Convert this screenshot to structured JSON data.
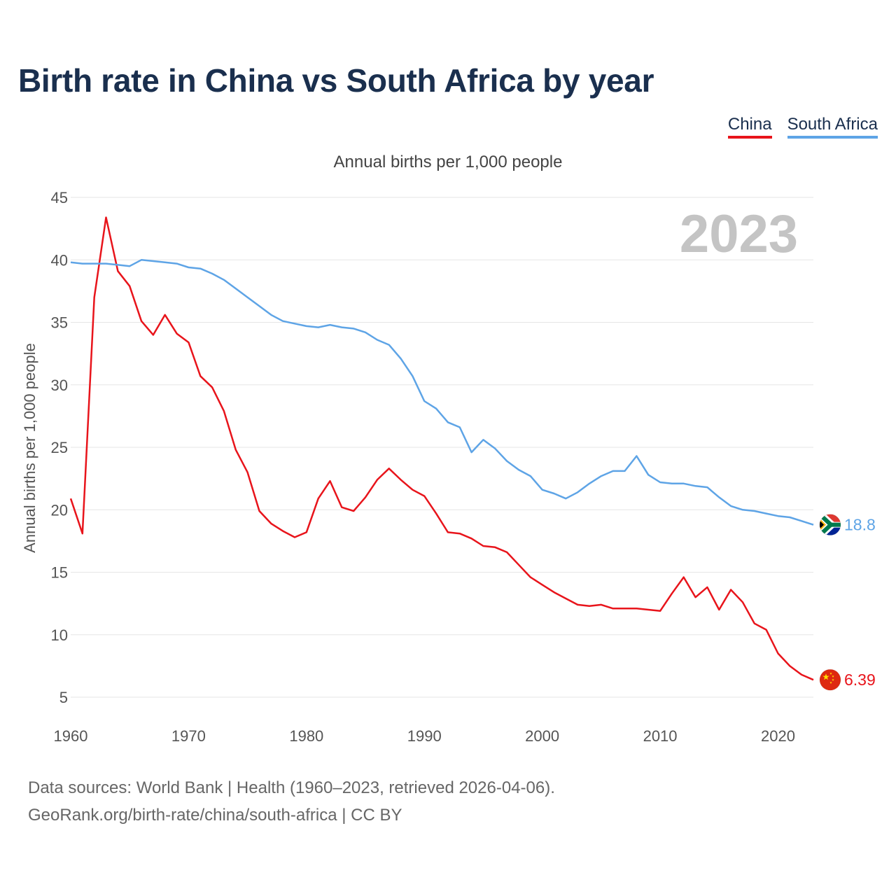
{
  "title": "Birth rate in China vs South Africa by year",
  "legend": {
    "china": "China",
    "south_africa": "South Africa"
  },
  "colors": {
    "china": "#e8141b",
    "south_africa": "#5ea4e6",
    "title": "#1a2f4e",
    "year_watermark": "#c4c4c4"
  },
  "chart_data": {
    "type": "line",
    "subtitle": "Annual births per 1,000 people",
    "ylabel": "Annual births per 1,000 people",
    "xlabel": "",
    "current_year": "2023",
    "xlim": [
      1960,
      2023
    ],
    "ylim": [
      5,
      45
    ],
    "y_ticks": [
      5,
      10,
      15,
      20,
      25,
      30,
      35,
      40,
      45
    ],
    "x_ticks": [
      1960,
      1970,
      1980,
      1990,
      2000,
      2010,
      2020
    ],
    "grid": true,
    "x": [
      1960,
      1961,
      1962,
      1963,
      1964,
      1965,
      1966,
      1967,
      1968,
      1969,
      1970,
      1971,
      1972,
      1973,
      1974,
      1975,
      1976,
      1977,
      1978,
      1979,
      1980,
      1981,
      1982,
      1983,
      1984,
      1985,
      1986,
      1987,
      1988,
      1989,
      1990,
      1991,
      1992,
      1993,
      1994,
      1995,
      1996,
      1997,
      1998,
      1999,
      2000,
      2001,
      2002,
      2003,
      2004,
      2005,
      2006,
      2007,
      2008,
      2009,
      2010,
      2011,
      2012,
      2013,
      2014,
      2015,
      2016,
      2017,
      2018,
      2019,
      2020,
      2021,
      2022,
      2023
    ],
    "series": [
      {
        "name": "China",
        "end_label": "6.39",
        "flag": "china-flag",
        "values": [
          20.9,
          18.1,
          37.0,
          43.4,
          39.1,
          37.9,
          35.1,
          34.0,
          35.6,
          34.1,
          33.4,
          30.7,
          29.8,
          27.9,
          24.8,
          23.0,
          19.9,
          18.9,
          18.3,
          17.8,
          18.2,
          20.9,
          22.3,
          20.2,
          19.9,
          21.0,
          22.4,
          23.3,
          22.4,
          21.6,
          21.1,
          19.7,
          18.2,
          18.1,
          17.7,
          17.1,
          17.0,
          16.6,
          15.6,
          14.6,
          14.0,
          13.4,
          12.9,
          12.4,
          12.3,
          12.4,
          12.1,
          12.1,
          12.1,
          12.0,
          11.9,
          13.3,
          14.6,
          13.0,
          13.8,
          12.0,
          13.6,
          12.6,
          10.9,
          10.4,
          8.5,
          7.5,
          6.8,
          6.39
        ]
      },
      {
        "name": "South Africa",
        "end_label": "18.8",
        "flag": "south-africa-flag",
        "values": [
          39.8,
          39.7,
          39.7,
          39.7,
          39.6,
          39.5,
          40.0,
          39.9,
          39.8,
          39.7,
          39.4,
          39.3,
          38.9,
          38.4,
          37.7,
          37.0,
          36.3,
          35.6,
          35.1,
          34.9,
          34.7,
          34.6,
          34.8,
          34.6,
          34.5,
          34.2,
          33.6,
          33.2,
          32.1,
          30.7,
          28.7,
          28.1,
          27.0,
          26.6,
          24.6,
          25.6,
          24.9,
          23.9,
          23.2,
          22.7,
          21.6,
          21.3,
          20.9,
          21.4,
          22.1,
          22.7,
          23.1,
          23.1,
          24.3,
          22.8,
          22.2,
          22.1,
          22.1,
          21.9,
          21.8,
          21.0,
          20.3,
          20.0,
          19.9,
          19.7,
          19.5,
          19.4,
          19.1,
          18.8
        ]
      }
    ]
  },
  "footer": {
    "line1": "Data sources: World Bank | Health (1960–2023, retrieved 2026-04-06).",
    "line2": "GeoRank.org/birth-rate/china/south-africa | CC BY"
  }
}
